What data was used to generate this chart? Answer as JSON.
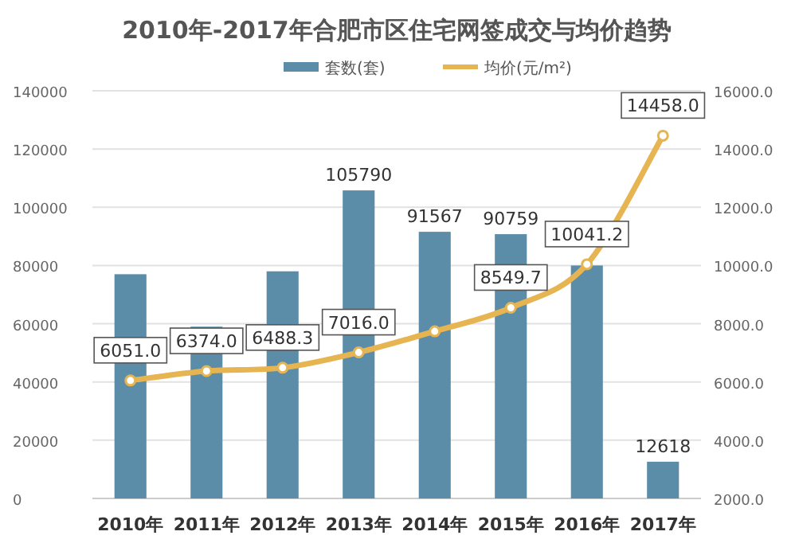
{
  "chart_data": {
    "type": "bar",
    "title": "2010年-2017年合肥市区住宅网签成交与均价趋势",
    "categories": [
      "2010年",
      "2011年",
      "2012年",
      "2013年",
      "2014年",
      "2015年",
      "2016年",
      "2017年"
    ],
    "series": [
      {
        "name": "套数(套)",
        "color": "#5b8ca8",
        "values": [
          77000,
          59000,
          78000,
          105790,
          91567,
          90759,
          80000,
          12618
        ],
        "value_labels": [
          null,
          null,
          null,
          "105790",
          "91567",
          "90759",
          null,
          "12618"
        ]
      },
      {
        "name": "均价(元/m²)",
        "type": "line",
        "axis": "y2",
        "color": "#e6b450",
        "marker": "circle",
        "values": [
          6051.0,
          6374.0,
          6488.3,
          7016.0,
          7740,
          8549.7,
          10041.2,
          14458.0
        ],
        "value_labels": [
          "6051.0",
          "6374.0",
          "6488.3",
          "7016.0",
          null,
          "8549.7",
          "10041.2",
          "14458.0"
        ]
      }
    ],
    "ylim": [
      0,
      140000
    ],
    "yticks": [
      0,
      20000,
      40000,
      60000,
      80000,
      100000,
      120000,
      140000
    ],
    "y2lim": [
      2000,
      16000
    ],
    "y2ticks": [
      {
        "value": 2000,
        "label": "2000.0"
      },
      {
        "value": 4000,
        "label": "4000.0"
      },
      {
        "value": 6000,
        "label": "6000.0"
      },
      {
        "value": 8000,
        "label": "8000.0"
      },
      {
        "value": 10000,
        "label": "10000.0"
      },
      {
        "value": 12000,
        "label": "12000.0"
      },
      {
        "value": 14000,
        "label": "14000.0"
      },
      {
        "value": 16000,
        "label": "16000.0"
      }
    ],
    "grid": "y",
    "legend": "top"
  }
}
